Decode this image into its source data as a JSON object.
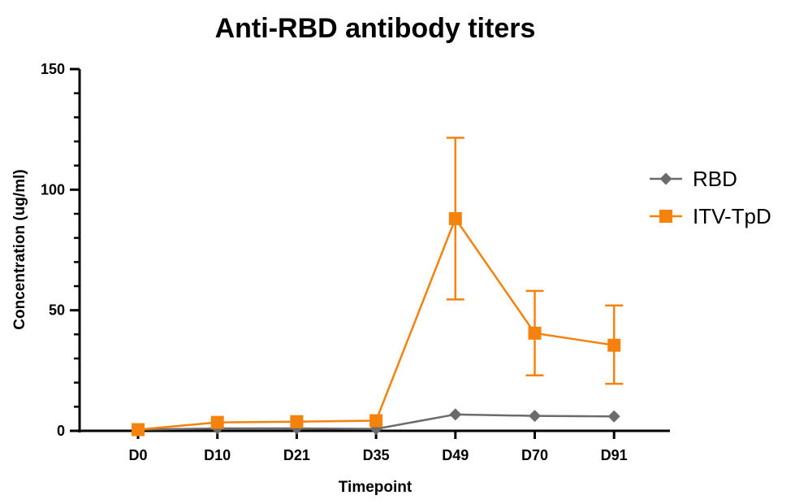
{
  "chart_data": {
    "type": "line",
    "title": "Anti-RBD antibody titers",
    "xlabel": "Timepoint",
    "ylabel": "Concentration (ug/ml)",
    "categories": [
      "D0",
      "D10",
      "D21",
      "D35",
      "D49",
      "D70",
      "D91"
    ],
    "ylim": [
      0,
      150
    ],
    "yticks": [
      0,
      50,
      100,
      150
    ],
    "grid": false,
    "legend_position": "right",
    "series": [
      {
        "name": "RBD",
        "color": "#6b6b6b",
        "marker": "diamond",
        "values": [
          0.5,
          1,
          1,
          0.8,
          6.8,
          6.2,
          6.0
        ]
      },
      {
        "name": "ITV-TpD",
        "color": "#f5820d",
        "marker": "square",
        "values": [
          0.5,
          3.5,
          3.8,
          4.2,
          88,
          40.5,
          35.5
        ],
        "error_low": [
          0,
          0,
          0,
          0,
          54.5,
          23,
          19.5
        ],
        "error_high": [
          0,
          0,
          0,
          0,
          121.5,
          58,
          52
        ]
      }
    ]
  }
}
